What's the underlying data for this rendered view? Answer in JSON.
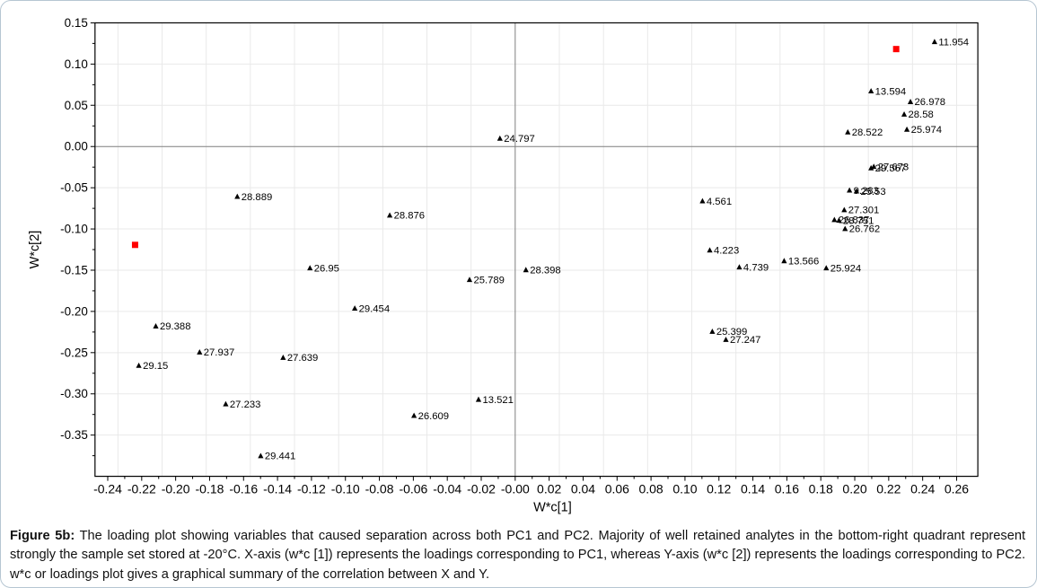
{
  "figure": {
    "caption_label": "Figure 5b:",
    "caption_text": " The loading plot showing variables that caused separation across both PC1 and PC2. Majority of well retained analytes in the bottom-right quadrant represent strongly the sample set stored at -20°C. X-axis (w*c [1]) represents the loadings corresponding to PC1, whereas Y-axis (w*c [2]) represents the loadings corresponding to PC2. w*c or loadings plot gives a graphical summary of the correlation between X and Y."
  },
  "chart_data": {
    "type": "scatter",
    "title": "",
    "xlabel": "W*c[1]",
    "ylabel": "W*c[2]",
    "xlim": [
      -0.2475,
      0.2725
    ],
    "ylim": [
      -0.4,
      0.15
    ],
    "x_tick_min": -0.24,
    "x_tick_max": 0.26,
    "x_minor_step": 0.01,
    "x_label_step": 0.02,
    "x_zero_label": "-0.00",
    "y_tick_min": -0.375,
    "y_tick_max": 0.15,
    "y_minor_step": 0.025,
    "y_label_step": 0.05,
    "x_grid_step": 0.026,
    "y_grid_step": 0.05,
    "grid": true,
    "legend": "none",
    "colors": {
      "frame": "#000000",
      "grid": "#e9e9e9",
      "zero_line": "#7f7f7f",
      "tick_text": "#000000",
      "point": "#000000",
      "reference": "#ff0000"
    },
    "x_tick_labels": [
      "-0.24",
      "-0.22",
      "-0.20",
      "-0.18",
      "-0.16",
      "-0.14",
      "-0.12",
      "-0.10",
      "-0.08",
      "-0.06",
      "-0.04",
      "-0.02",
      "-0.00",
      "0.02",
      "0.04",
      "0.06",
      "0.08",
      "0.10",
      "0.12",
      "0.14",
      "0.16",
      "0.18",
      "0.20",
      "0.22",
      "0.24",
      "0.26"
    ],
    "y_tick_labels": [
      "0.15",
      "0.10",
      "0.05",
      "0.00",
      "-0.05",
      "-0.10",
      "-0.15",
      "-0.20",
      "-0.25",
      "-0.30",
      "-0.35"
    ],
    "series": [
      {
        "name": "variable-loadings",
        "marker": "triangle",
        "color": "#000000",
        "points": [
          {
            "label": "11.954",
            "x": 0.247,
            "y": 0.127
          },
          {
            "label": "13.594",
            "x": 0.2096,
            "y": 0.0672
          },
          {
            "label": "26.978",
            "x": 0.2328,
            "y": 0.0542
          },
          {
            "label": "28.58",
            "x": 0.2291,
            "y": 0.039
          },
          {
            "label": "25.974",
            "x": 0.2307,
            "y": 0.0206
          },
          {
            "label": "28.522",
            "x": 0.1959,
            "y": 0.0174
          },
          {
            "label": "24.797",
            "x": -0.009,
            "y": 0.0098
          },
          {
            "label": "27.673",
            "x": 0.2112,
            "y": -0.0244
          },
          {
            "label": "29.567",
            "x": 0.2096,
            "y": -0.0262
          },
          {
            "label": "9.283",
            "x": 0.1969,
            "y": -0.0531
          },
          {
            "label": "25.53",
            "x": 0.201,
            "y": -0.0542
          },
          {
            "label": "4.561",
            "x": 0.1103,
            "y": -0.0662
          },
          {
            "label": "27.301",
            "x": 0.1938,
            "y": -0.077
          },
          {
            "label": "26.837",
            "x": 0.188,
            "y": -0.0889
          },
          {
            "label": "28.751",
            "x": 0.1907,
            "y": -0.0896
          },
          {
            "label": "26.762",
            "x": 0.1943,
            "y": -0.0998
          },
          {
            "label": "28.889",
            "x": -0.1637,
            "y": -0.0607
          },
          {
            "label": "28.876",
            "x": -0.0739,
            "y": -0.0835
          },
          {
            "label": "4.223",
            "x": 0.1146,
            "y": -0.1258
          },
          {
            "label": "26.95",
            "x": -0.1209,
            "y": -0.1475
          },
          {
            "label": "4.739",
            "x": 0.132,
            "y": -0.1464
          },
          {
            "label": "13.566",
            "x": 0.1584,
            "y": -0.1388
          },
          {
            "label": "25.924",
            "x": 0.1832,
            "y": -0.1475
          },
          {
            "label": "28.398",
            "x": 0.0063,
            "y": -0.1497
          },
          {
            "label": "25.789",
            "x": -0.0269,
            "y": -0.1616
          },
          {
            "label": "29.454",
            "x": -0.0945,
            "y": -0.1963
          },
          {
            "label": "29.388",
            "x": -0.2117,
            "y": -0.218
          },
          {
            "label": "27.937",
            "x": -0.1859,
            "y": -0.2495
          },
          {
            "label": "27.639",
            "x": -0.1367,
            "y": -0.256
          },
          {
            "label": "29.15",
            "x": -0.2217,
            "y": -0.2657
          },
          {
            "label": "25.399",
            "x": 0.1161,
            "y": -0.2245
          },
          {
            "label": "27.247",
            "x": 0.1241,
            "y": -0.2343
          },
          {
            "label": "27.233",
            "x": -0.1705,
            "y": -0.3124
          },
          {
            "label": "13.521",
            "x": -0.0216,
            "y": -0.3069
          },
          {
            "label": "26.609",
            "x": -0.0596,
            "y": -0.3264
          },
          {
            "label": "29.441",
            "x": -0.1499,
            "y": -0.3753
          }
        ]
      },
      {
        "name": "reference-markers",
        "marker": "square",
        "color": "#ff0000",
        "points": [
          {
            "label": "",
            "x": 0.2244,
            "y": 0.1182
          },
          {
            "label": "",
            "x": -0.2239,
            "y": -0.1193
          }
        ]
      }
    ]
  }
}
